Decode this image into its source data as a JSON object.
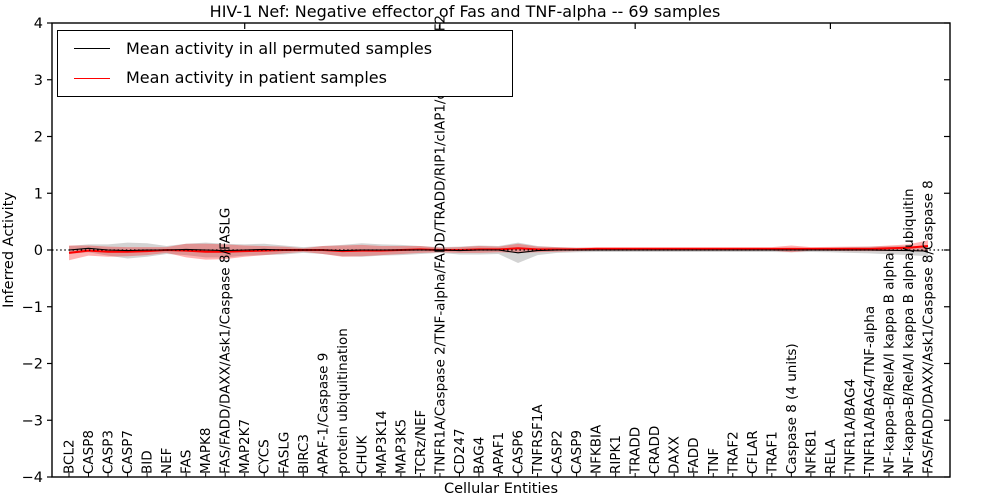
{
  "chart_data": {
    "type": "line",
    "title": "HIV-1 Nef: Negative effector of Fas and TNF-alpha -- 69 samples",
    "xlabel": "Cellular Entities",
    "ylabel": "Inferred Activity",
    "ylim": [
      -4,
      4
    ],
    "grid": false,
    "yticks": [
      {
        "value": 4,
        "label": "4"
      },
      {
        "value": 3,
        "label": "3"
      },
      {
        "value": 2,
        "label": "2"
      },
      {
        "value": 1,
        "label": "1"
      },
      {
        "value": 0,
        "label": "0"
      },
      {
        "value": -1,
        "label": "−1"
      },
      {
        "value": -2,
        "label": "−2"
      },
      {
        "value": -3,
        "label": "−3"
      },
      {
        "value": -4,
        "label": "−4"
      }
    ],
    "top_tick_indices": [
      9,
      19,
      29,
      39
    ],
    "legend": {
      "position": "upper left",
      "entries": [
        {
          "label": "Mean activity in all permuted samples",
          "color": "#000000"
        },
        {
          "label": "Mean activity in patient samples",
          "color": "#ff0000"
        }
      ]
    },
    "colors": {
      "permuted": "#000000",
      "patient": "#ff0000",
      "permuted_band": "rgba(128,128,128,0.35)",
      "patient_band": "rgba(255,0,0,0.30)",
      "zero_line": "#000000"
    },
    "categories": [
      "BCL2",
      "CASP8",
      "CASP3",
      "CASP7",
      "BID",
      "NEF",
      "FAS",
      "MAPK8",
      "FAS/FADD/DAXX/Ask1/Caspase 8/FASLG",
      "MAP2K7",
      "CYCS",
      "FASLG",
      "BIRC3",
      "APAF-1/Caspase 9",
      "protein ubiquitination",
      "CHUK",
      "MAP3K14",
      "MAP3K5",
      "TCRz/NEF",
      "TNFR1A/Caspase 2/TNF-alpha/FADD/TRADD/RIP1/cIAP1/cIAP2/TRAF2",
      "CD247",
      "BAG4",
      "APAF1",
      "CASP6",
      "TNFRSF1A",
      "CASP2",
      "CASP9",
      "NFKBIA",
      "RIPK1",
      "TRADD",
      "CRADD",
      "DAXX",
      "FADD",
      "TNF",
      "TRAF2",
      "CFLAR",
      "TRAF1",
      "Caspase 8 (4 units)",
      "NFKB1",
      "RELA",
      "TNFR1A/BAG4",
      "TNFR1A/BAG4/TNF-alpha",
      "NF-kappa-B/RelA/I kappa B alpha",
      "NF-kappa-B/RelA/I kappa B alpha/ubiquitin",
      "FAS/FADD/DAXX/Ask1/Caspase 8/Caspase 8"
    ],
    "series": [
      {
        "name": "permuted_mean",
        "values": [
          0.0,
          0.03,
          0.0,
          -0.01,
          0.0,
          0.0,
          0.01,
          0.0,
          -0.01,
          0.0,
          0.01,
          0.0,
          0.0,
          0.0,
          -0.01,
          0.0,
          0.0,
          0.0,
          0.0,
          0.0,
          -0.01,
          0.0,
          0.0,
          -0.05,
          -0.01,
          0.0,
          0.0,
          0.0,
          0.0,
          0.0,
          0.0,
          0.0,
          0.0,
          0.0,
          0.0,
          0.0,
          0.0,
          0.0,
          0.0,
          0.0,
          0.0,
          0.0,
          -0.005,
          -0.01,
          -0.02
        ]
      },
      {
        "name": "permuted_std",
        "values": [
          0.07,
          0.07,
          0.1,
          0.14,
          0.12,
          0.07,
          0.1,
          0.13,
          0.12,
          0.1,
          0.1,
          0.08,
          0.05,
          0.07,
          0.1,
          0.12,
          0.1,
          0.09,
          0.07,
          0.05,
          0.07,
          0.08,
          0.07,
          0.18,
          0.08,
          0.05,
          0.04,
          0.035,
          0.035,
          0.035,
          0.035,
          0.035,
          0.035,
          0.035,
          0.035,
          0.035,
          0.035,
          0.04,
          0.035,
          0.04,
          0.05,
          0.06,
          0.07,
          0.08,
          0.09
        ]
      },
      {
        "name": "patient_mean",
        "values": [
          -0.05,
          -0.01,
          -0.03,
          -0.03,
          -0.02,
          0.0,
          -0.01,
          -0.03,
          -0.03,
          -0.02,
          -0.01,
          0.0,
          0.0,
          0.0,
          -0.02,
          -0.01,
          -0.01,
          0.0,
          0.01,
          0.0,
          0.0,
          0.01,
          0.01,
          0.03,
          0.01,
          0.01,
          0.01,
          0.02,
          0.02,
          0.02,
          0.02,
          0.02,
          0.02,
          0.02,
          0.02,
          0.02,
          0.02,
          0.02,
          0.02,
          0.02,
          0.02,
          0.02,
          0.03,
          0.04,
          0.07
        ]
      },
      {
        "name": "patient_std",
        "values": [
          0.13,
          0.09,
          0.09,
          0.08,
          0.07,
          0.05,
          0.12,
          0.14,
          0.13,
          0.1,
          0.08,
          0.06,
          0.03,
          0.07,
          0.1,
          0.1,
          0.08,
          0.07,
          0.06,
          0.04,
          0.05,
          0.06,
          0.05,
          0.08,
          0.05,
          0.04,
          0.03,
          0.03,
          0.03,
          0.03,
          0.03,
          0.03,
          0.03,
          0.03,
          0.03,
          0.03,
          0.03,
          0.06,
          0.03,
          0.035,
          0.04,
          0.04,
          0.05,
          0.06,
          0.1
        ]
      }
    ]
  }
}
